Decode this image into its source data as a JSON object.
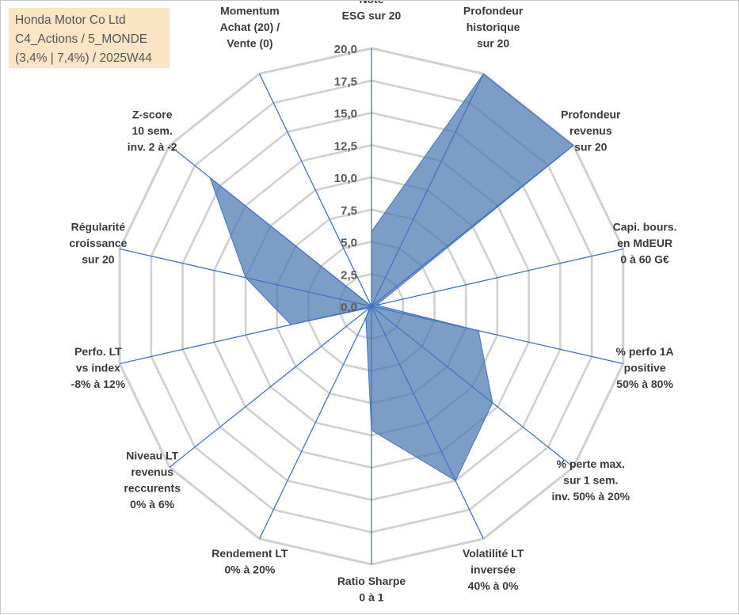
{
  "title_box": {
    "line1": "Honda Motor Co Ltd",
    "line2": "C4_Actions / 5_MONDE",
    "line3": "(3,4% | 7,4%) / 2025W44"
  },
  "chart_data": {
    "type": "radar",
    "title": "Honda Motor Co Ltd",
    "rmin": 0,
    "rmax": 20,
    "ticks": [
      "0,0",
      "2,5",
      "5,0",
      "7,5",
      "10,0",
      "12,5",
      "15,0",
      "17,5",
      "20,0"
    ],
    "categories": [
      [
        "Note",
        "ESG sur 20"
      ],
      [
        "Profondeur",
        "historique",
        "sur 20"
      ],
      [
        "Profondeur",
        "revenus",
        "sur 20"
      ],
      [
        "Capi. bours.",
        "en MdEUR",
        "0 à 60 G€"
      ],
      [
        "% perfo 1A",
        "positive",
        "50% à 80%"
      ],
      [
        "% perte max.",
        "sur 1 sem.",
        "inv. 50% à 20%"
      ],
      [
        "Volatilité LT",
        "inversée",
        "40% à 0%"
      ],
      [
        "Ratio Sharpe",
        "0 à 1"
      ],
      [
        "Rendement LT",
        "0% à 20%"
      ],
      [
        "Niveau LT",
        "revenus",
        "reccurents",
        "0% à 6%"
      ],
      [
        "Perfo. LT",
        "vs index",
        "-8% à 12%"
      ],
      [
        "Régularité",
        "croissance",
        "sur 20"
      ],
      [
        "Z-score",
        "10 sem.",
        "inv. 2 à -2"
      ],
      [
        "Momentum",
        "Achat (20) /",
        "Vente (0)"
      ]
    ],
    "series": [
      {
        "name": "Honda Motor Co Ltd",
        "color": "#4a78b0",
        "values": [
          5.8,
          20.0,
          20.0,
          0.4,
          8.5,
          12.0,
          15.0,
          9.6,
          1.0,
          0.2,
          6.4,
          10.0,
          16.0,
          0.0
        ]
      }
    ],
    "grid": true
  }
}
